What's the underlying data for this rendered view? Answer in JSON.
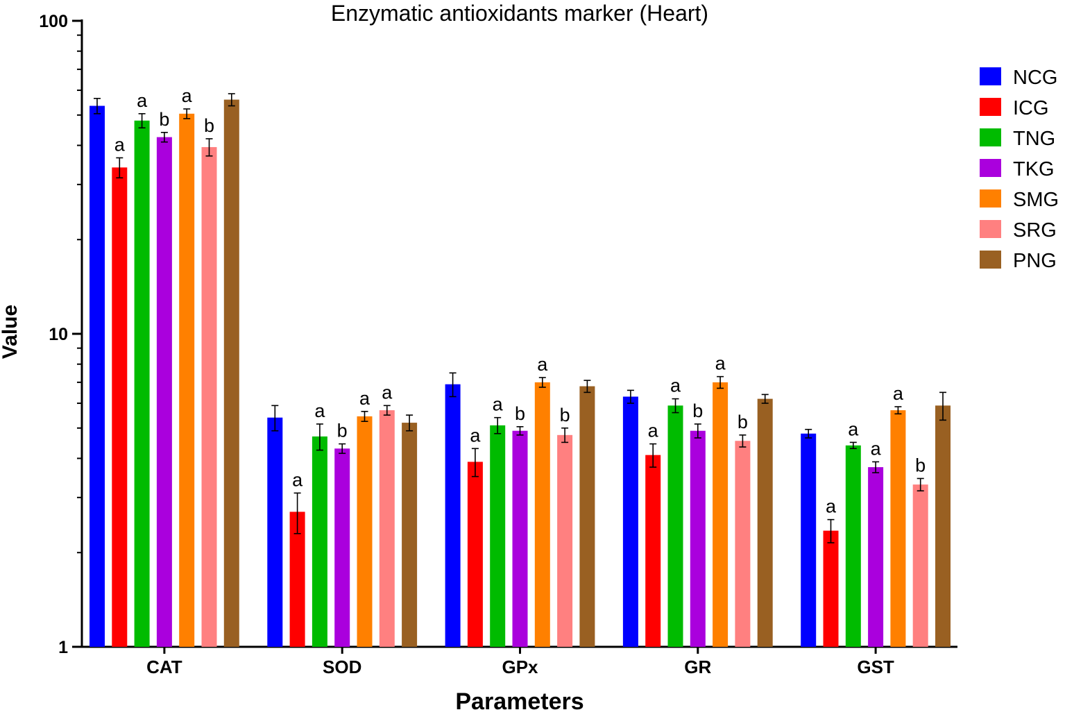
{
  "chart_data": {
    "type": "bar",
    "title": "Enzymatic antioxidants marker (Heart)",
    "xlabel": "Parameters",
    "ylabel": "Value",
    "yscale": "log",
    "ylim": [
      1,
      100
    ],
    "yticks": [
      "1",
      "10",
      "100"
    ],
    "legend_position": "right",
    "grid": false,
    "categories": [
      "CAT",
      "SOD",
      "GPx",
      "GR",
      "GST"
    ],
    "series": [
      {
        "name": "NCG",
        "color": "#0000ff",
        "values": [
          53.5,
          5.4,
          6.9,
          6.3,
          4.8
        ],
        "errors": [
          3.0,
          0.5,
          0.6,
          0.3,
          0.15
        ],
        "labels": [
          "",
          "",
          "",
          "",
          ""
        ]
      },
      {
        "name": "ICG",
        "color": "#ff0000",
        "values": [
          34.0,
          2.7,
          3.9,
          4.1,
          2.35
        ],
        "errors": [
          2.5,
          0.4,
          0.4,
          0.35,
          0.2
        ],
        "labels": [
          "a",
          "a",
          "a",
          "a",
          "a"
        ]
      },
      {
        "name": "TNG",
        "color": "#00bb00",
        "values": [
          48.0,
          4.7,
          5.1,
          5.9,
          4.4
        ],
        "errors": [
          2.5,
          0.45,
          0.3,
          0.3,
          0.1
        ],
        "labels": [
          "a",
          "a",
          "a",
          "a",
          "a"
        ]
      },
      {
        "name": "TKG",
        "color": "#aa00dd",
        "values": [
          42.5,
          4.3,
          4.9,
          4.9,
          3.75
        ],
        "errors": [
          1.5,
          0.15,
          0.15,
          0.25,
          0.15
        ],
        "labels": [
          "b",
          "b",
          "b",
          "b",
          "a"
        ]
      },
      {
        "name": "SMG",
        "color": "#ff8000",
        "values": [
          50.5,
          5.45,
          7.0,
          7.0,
          5.7
        ],
        "errors": [
          1.8,
          0.2,
          0.25,
          0.3,
          0.15
        ],
        "labels": [
          "a",
          "a",
          "a",
          "a",
          "a"
        ]
      },
      {
        "name": "SRG",
        "color": "#ff8080",
        "values": [
          39.5,
          5.7,
          4.75,
          4.55,
          3.3
        ],
        "errors": [
          2.5,
          0.2,
          0.25,
          0.2,
          0.15
        ],
        "labels": [
          "b",
          "a",
          "b",
          "b",
          "b"
        ]
      },
      {
        "name": "PNG",
        "color": "#996022",
        "values": [
          56.0,
          5.2,
          6.8,
          6.2,
          5.9
        ],
        "errors": [
          2.5,
          0.3,
          0.3,
          0.2,
          0.6
        ],
        "labels": [
          "",
          "",
          "",
          "",
          ""
        ]
      }
    ]
  }
}
